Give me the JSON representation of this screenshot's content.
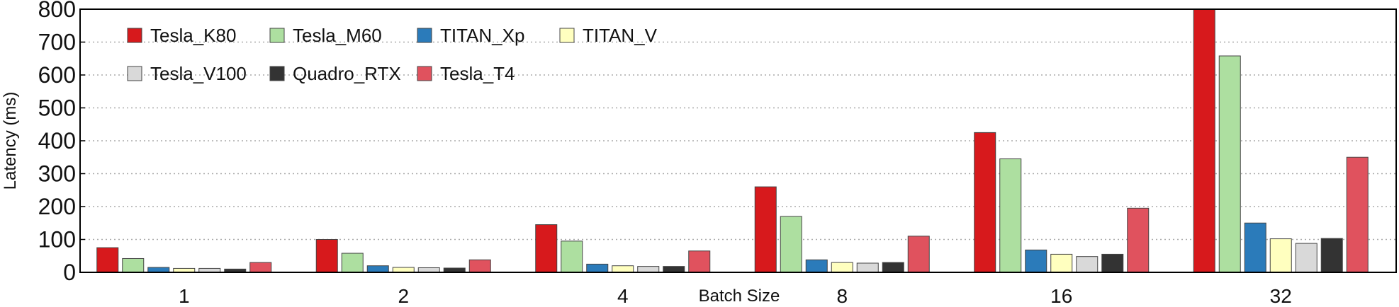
{
  "chart_data": {
    "type": "bar",
    "title": "",
    "xlabel": "Batch Size",
    "ylabel": "Latency (ms)",
    "ylim": [
      0,
      800
    ],
    "yticks": [
      0,
      100,
      200,
      300,
      400,
      500,
      600,
      700,
      800
    ],
    "grid": "horizontal dotted",
    "legend_position": "top-left",
    "categories": [
      "1",
      "2",
      "4",
      "8",
      "16",
      "32"
    ],
    "series": [
      {
        "name": "Tesla_K80",
        "color": "#d7191c",
        "values": [
          75,
          100,
          145,
          260,
          425,
          800
        ]
      },
      {
        "name": "Tesla_M60",
        "color": "#addfa0",
        "values": [
          42,
          58,
          95,
          170,
          345,
          658
        ]
      },
      {
        "name": "TITAN_Xp",
        "color": "#2b7bba",
        "values": [
          15,
          20,
          25,
          38,
          68,
          150
        ]
      },
      {
        "name": "TITAN_V",
        "color": "#ffffbf",
        "values": [
          12,
          15,
          20,
          30,
          55,
          102
        ]
      },
      {
        "name": "Tesla_V100",
        "color": "#d9d9d9",
        "values": [
          12,
          14,
          18,
          28,
          48,
          88
        ]
      },
      {
        "name": "Quadro_RTX",
        "color": "#333333",
        "values": [
          10,
          13,
          18,
          30,
          55,
          103
        ]
      },
      {
        "name": "Tesla_T4",
        "color": "#e0525e",
        "values": [
          30,
          38,
          65,
          110,
          195,
          350
        ]
      }
    ]
  }
}
